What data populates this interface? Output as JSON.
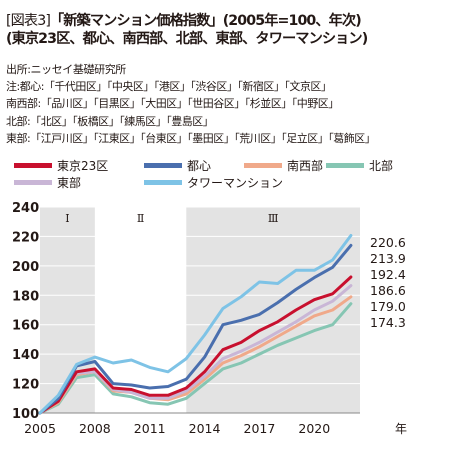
{
  "title": {
    "line1_prefix": "[図表3]",
    "line1_main": "「新築マンション価格指数」(2005年=100、年次)",
    "line2": "(東京23区、都心、南西部、北部、東部、タワーマンション)"
  },
  "source": "出所:ニッセイ基礎研究所",
  "notes": [
    "注:都心:「千代田区」「中央区」「港区」「渋谷区」「新宿区」「文京区」",
    "南西部:「品川区」「目黒区」「大田区」「世田谷区」「杉並区」「中野区」",
    "北部:「北区」「板橋区」「練馬区」「豊島区」",
    "東部:「江戸川区」「江東区」「台東区」「墨田区」「荒川区」「足立区」「葛飾区」"
  ],
  "colors": {
    "tokyo23": "#c8102e",
    "toshin": "#4a6fae",
    "nanseibu": "#f0a98a",
    "hokubu": "#86c6b3",
    "tobu": "#c9b6d6",
    "tower": "#7ec3e6",
    "shade": "#e3e3e3"
  },
  "chart_data": {
    "type": "line",
    "title": "新築マンション価格指数",
    "xlabel": "年",
    "ylabel": "",
    "xlim": [
      2005,
      2022.5
    ],
    "ylim": [
      100,
      240
    ],
    "yticks": [
      100,
      120,
      140,
      160,
      180,
      200,
      220,
      240
    ],
    "xticks": [
      2005,
      2008,
      2011,
      2014,
      2017,
      2020
    ],
    "x_unit_label": "年",
    "periods": [
      {
        "label": "Ⅰ",
        "from": 2005,
        "to": 2008,
        "shaded": true
      },
      {
        "label": "Ⅱ",
        "from": 2008,
        "to": 2013,
        "shaded": false
      },
      {
        "label": "Ⅲ",
        "from": 2013,
        "to": 2022.5,
        "shaded": true
      }
    ],
    "x": [
      2005,
      2006,
      2007,
      2008,
      2009,
      2010,
      2011,
      2012,
      2013,
      2014,
      2015,
      2016,
      2017,
      2018,
      2019,
      2020,
      2021,
      2022
    ],
    "series": [
      {
        "name": "東京23区",
        "color_key": "tokyo23",
        "end_label": "192.4",
        "values": [
          100,
          108,
          128,
          130,
          117,
          116,
          112,
          112,
          117,
          128,
          143,
          148,
          156,
          162,
          170,
          177,
          181,
          192.4
        ]
      },
      {
        "name": "都心",
        "color_key": "toshin",
        "end_label": "213.9",
        "values": [
          100,
          110,
          132,
          135,
          120,
          119,
          117,
          118,
          123,
          138,
          160,
          163,
          167,
          175,
          184,
          192,
          199,
          213.9
        ]
      },
      {
        "name": "南西部",
        "color_key": "nanseibu",
        "end_label": "179.0",
        "values": [
          100,
          107,
          126,
          128,
          115,
          114,
          110,
          109,
          113,
          123,
          134,
          139,
          145,
          152,
          159,
          166,
          170,
          179.0
        ]
      },
      {
        "name": "北部",
        "color_key": "hokubu",
        "end_label": "174.3",
        "values": [
          100,
          106,
          124,
          126,
          113,
          111,
          107,
          106,
          110,
          120,
          130,
          134,
          140,
          146,
          151,
          156,
          160,
          174.3
        ]
      },
      {
        "name": "東部",
        "color_key": "tobu",
        "end_label": "186.6",
        "values": [
          100,
          108,
          127,
          128,
          116,
          114,
          110,
          110,
          115,
          125,
          137,
          142,
          148,
          155,
          162,
          170,
          176,
          186.6
        ]
      },
      {
        "name": "タワーマンション",
        "color_key": "tower",
        "end_label": "220.6",
        "values": [
          100,
          112,
          133,
          138,
          134,
          136,
          131,
          128,
          137,
          153,
          171,
          179,
          189,
          188,
          197,
          197,
          204,
          220.6
        ]
      }
    ],
    "end_label_order": [
      "220.6",
      "213.9",
      "192.4",
      "186.6",
      "179.0",
      "174.3"
    ],
    "legend_position": "top"
  }
}
